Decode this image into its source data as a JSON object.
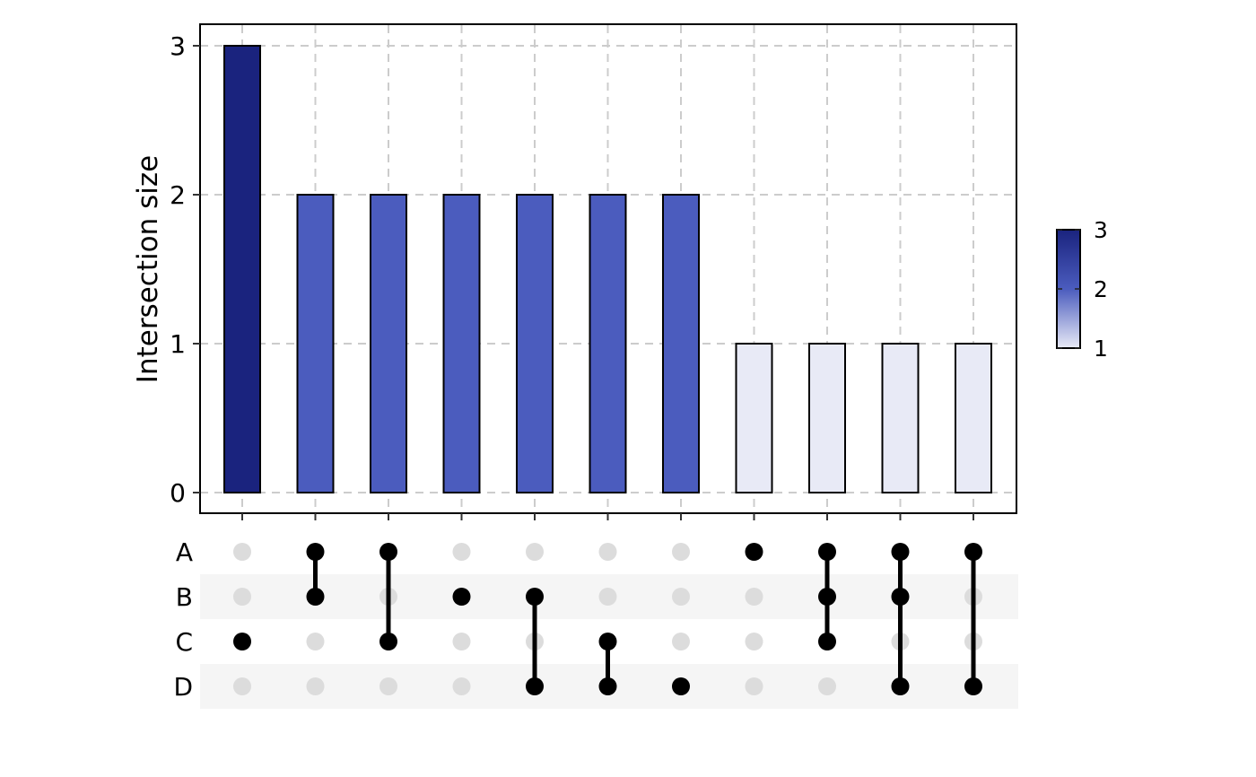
{
  "chart_data": {
    "type": "bar",
    "chart_kind": "upset",
    "ylabel": "Intersection size",
    "ylim": [
      0,
      3
    ],
    "yticks": [
      "0",
      "1",
      "2",
      "3"
    ],
    "grid": true,
    "legend_placement": "right",
    "legend": {
      "type": "colorbar",
      "ticks": [
        "1",
        "2",
        "3"
      ],
      "range": [
        1,
        3
      ],
      "low_color": "#e8eaf6",
      "high_color": "#1a237e"
    },
    "sets": [
      "A",
      "B",
      "C",
      "D"
    ],
    "intersections": [
      {
        "members": [
          "C"
        ],
        "value": 3
      },
      {
        "members": [
          "A",
          "B"
        ],
        "value": 2
      },
      {
        "members": [
          "A",
          "C"
        ],
        "value": 2
      },
      {
        "members": [
          "B"
        ],
        "value": 2
      },
      {
        "members": [
          "B",
          "D"
        ],
        "value": 2
      },
      {
        "members": [
          "C",
          "D"
        ],
        "value": 2
      },
      {
        "members": [
          "D"
        ],
        "value": 2
      },
      {
        "members": [
          "A"
        ],
        "value": 1
      },
      {
        "members": [
          "A",
          "B",
          "C"
        ],
        "value": 1
      },
      {
        "members": [
          "A",
          "B",
          "D"
        ],
        "value": 1
      },
      {
        "members": [
          "A",
          "D"
        ],
        "value": 1
      }
    ],
    "colors": {
      "value_3": "#1a237e",
      "value_2": "#4b5cbe",
      "value_1": "#e8eaf6",
      "dot_active": "#000000",
      "dot_inactive": "#dcdcdc",
      "grid": "#cccccc",
      "row_shade": "#f5f5f5"
    }
  }
}
